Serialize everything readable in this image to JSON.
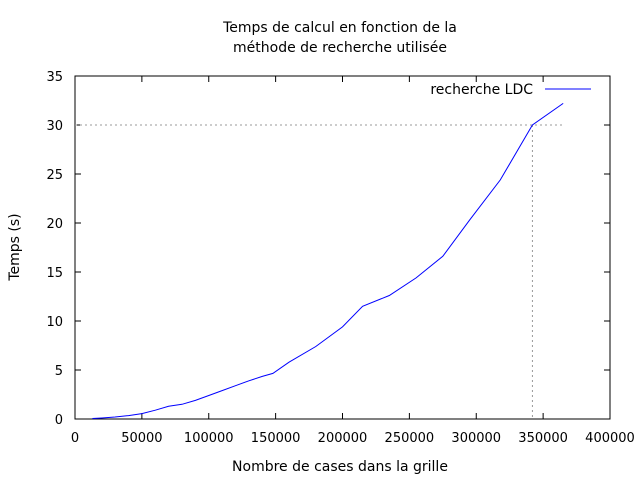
{
  "chart_data": {
    "type": "line",
    "title_line1": "Temps de calcul en fonction de la",
    "title_line2": "méthode de recherche utilisée",
    "xlabel": "Nombre de cases dans la grille",
    "ylabel": "Temps (s)",
    "xlim": [
      0,
      400000
    ],
    "ylim": [
      0,
      35
    ],
    "xticks": [
      0,
      50000,
      100000,
      150000,
      200000,
      250000,
      300000,
      350000,
      400000
    ],
    "yticks": [
      0,
      5,
      10,
      15,
      20,
      25,
      30,
      35
    ],
    "grid": false,
    "legend_position": "top-right",
    "series": [
      {
        "name": "recherche LDC",
        "color": "#0000ff",
        "x": [
          13000,
          20000,
          30000,
          40000,
          50000,
          60000,
          70000,
          80000,
          90000,
          100000,
          110000,
          120000,
          130000,
          140000,
          148000,
          160000,
          180000,
          200000,
          215000,
          235000,
          255000,
          275000,
          295000,
          318000,
          342000,
          365000
        ],
        "y": [
          0.05,
          0.1,
          0.2,
          0.35,
          0.55,
          0.9,
          1.3,
          1.5,
          1.9,
          2.4,
          2.9,
          3.4,
          3.9,
          4.35,
          4.65,
          5.8,
          7.4,
          9.4,
          11.5,
          12.6,
          14.4,
          16.6,
          20.3,
          24.4,
          30.0,
          32.2
        ]
      }
    ],
    "reference": {
      "x": 342000,
      "y": 30,
      "style": "dotted",
      "color": "#999999"
    }
  }
}
